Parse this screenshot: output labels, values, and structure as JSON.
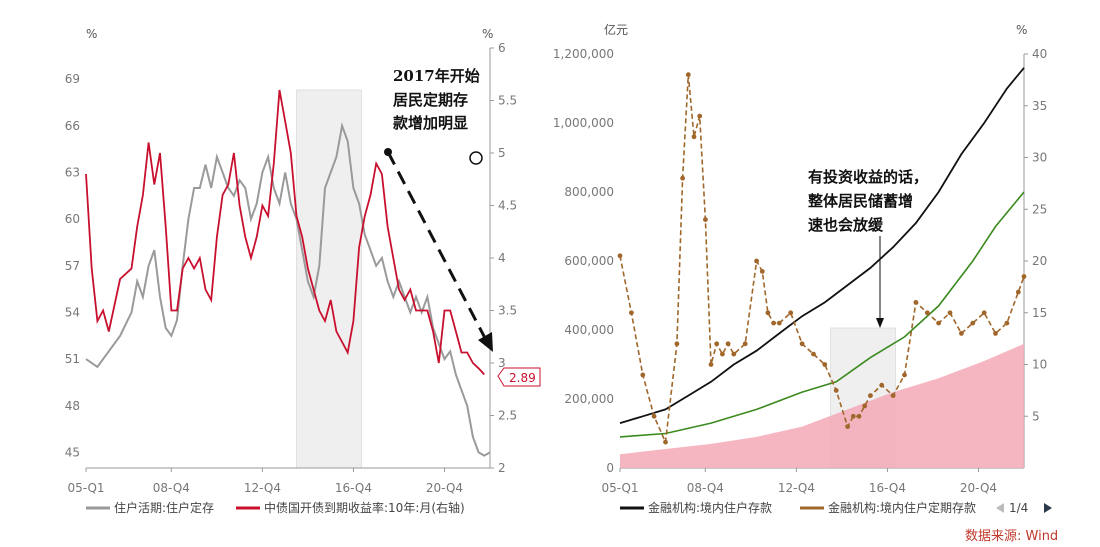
{
  "colors": {
    "gray": "#9a9a9a",
    "red": "#c8102e",
    "black": "#111111",
    "brown": "#a0662a",
    "green": "#3b8a1e",
    "pink": "#f4a9b6",
    "shade": "#e6e6e6"
  },
  "source_text": "数据来源: Wind",
  "pagination": {
    "text": "1/4",
    "prev_icon": "triangle-left-icon",
    "next_icon": "triangle-right-icon"
  },
  "chart_data": [
    {
      "type": "line",
      "x_tick_labels": [
        "05-Q1",
        "08-Q4",
        "12-Q4",
        "16-Q4",
        "20-Q4"
      ],
      "x_range": [
        "2005",
        "2022.75"
      ],
      "left_unit": "%",
      "right_unit": "%",
      "left_ticks": [
        "45",
        "48",
        "51",
        "54",
        "57",
        "60",
        "63",
        "66",
        "69"
      ],
      "left_ylim": [
        44,
        71
      ],
      "right_ticks": [
        "2",
        "2.5",
        "3",
        "3.5",
        "4",
        "4.5",
        "5",
        "5.5",
        "6"
      ],
      "right_ylim": [
        2,
        6
      ],
      "shaded_region": [
        2014.25,
        2017.1
      ],
      "series": [
        {
          "name": "住户活期:住户定存",
          "axis": "left",
          "x": [
            2005.0,
            2005.5,
            2006.0,
            2006.5,
            2007.0,
            2007.25,
            2007.5,
            2007.75,
            2008.0,
            2008.25,
            2008.5,
            2008.75,
            2009.0,
            2009.25,
            2009.5,
            2009.75,
            2010.0,
            2010.25,
            2010.5,
            2010.75,
            2011.0,
            2011.25,
            2011.5,
            2011.75,
            2012.0,
            2012.25,
            2012.5,
            2012.75,
            2013.0,
            2013.25,
            2013.5,
            2013.75,
            2014.0,
            2014.25,
            2014.5,
            2014.75,
            2015.0,
            2015.25,
            2015.5,
            2015.75,
            2016.0,
            2016.25,
            2016.5,
            2016.75,
            2017.0,
            2017.25,
            2017.5,
            2017.75,
            2018.0,
            2018.25,
            2018.5,
            2018.75,
            2019.0,
            2019.25,
            2019.5,
            2019.75,
            2020.0,
            2020.25,
            2020.5,
            2020.75,
            2021.0,
            2021.25,
            2021.5,
            2021.75,
            2022.0,
            2022.25,
            2022.5,
            2022.75
          ],
          "values": [
            51,
            50.5,
            51.5,
            52.5,
            54,
            56,
            55,
            57,
            58,
            55,
            53,
            52.5,
            53.5,
            57,
            60,
            62,
            62,
            63.5,
            62,
            64,
            63,
            62,
            61.5,
            62.5,
            62,
            60,
            61,
            63,
            64,
            62,
            61,
            63,
            61,
            60,
            58,
            56,
            55,
            57,
            62,
            63,
            64,
            66,
            65,
            62,
            61,
            59,
            58,
            57,
            57.5,
            56,
            55,
            56,
            55,
            54,
            55,
            54,
            55,
            53,
            52,
            51,
            51.5,
            50,
            49,
            48,
            46,
            45,
            44.8,
            45
          ]
        },
        {
          "name": "中债国开债到期收益率:10年:月(右轴)",
          "axis": "right",
          "x": [
            2005.0,
            2005.25,
            2005.5,
            2005.75,
            2006.0,
            2006.5,
            2007.0,
            2007.25,
            2007.5,
            2007.75,
            2008.0,
            2008.25,
            2008.5,
            2008.75,
            2009.0,
            2009.25,
            2009.5,
            2009.75,
            2010.0,
            2010.25,
            2010.5,
            2010.75,
            2011.0,
            2011.25,
            2011.5,
            2011.75,
            2012.0,
            2012.25,
            2012.5,
            2012.75,
            2013.0,
            2013.25,
            2013.5,
            2013.75,
            2014.0,
            2014.25,
            2014.5,
            2014.75,
            2015.0,
            2015.25,
            2015.5,
            2015.75,
            2016.0,
            2016.25,
            2016.5,
            2016.75,
            2017.0,
            2017.25,
            2017.5,
            2017.75,
            2018.0,
            2018.25,
            2018.5,
            2018.75,
            2019.0,
            2019.25,
            2019.5,
            2019.75,
            2020.0,
            2020.25,
            2020.5,
            2020.75,
            2021.0,
            2021.25,
            2021.5,
            2021.75,
            2022.0,
            2022.25,
            2022.5
          ],
          "values": [
            4.8,
            3.9,
            3.4,
            3.5,
            3.3,
            3.8,
            3.9,
            4.3,
            4.6,
            5.1,
            4.7,
            5.0,
            4.3,
            3.5,
            3.5,
            3.9,
            4.0,
            3.9,
            4.0,
            3.7,
            3.6,
            4.2,
            4.6,
            4.7,
            5.0,
            4.5,
            4.2,
            4.0,
            4.2,
            4.5,
            4.4,
            4.9,
            5.6,
            5.3,
            5.0,
            4.4,
            4.2,
            3.9,
            3.7,
            3.5,
            3.4,
            3.6,
            3.3,
            3.2,
            3.1,
            3.4,
            4.1,
            4.4,
            4.6,
            4.9,
            4.8,
            4.3,
            4.0,
            3.7,
            3.6,
            3.7,
            3.5,
            3.5,
            3.5,
            3.3,
            3.0,
            3.5,
            3.5,
            3.3,
            3.1,
            3.1,
            3.0,
            2.95,
            2.89
          ]
        }
      ],
      "end_label": "2.89",
      "annotation": [
        "2017年开始",
        "居民定期存",
        "款增加明显"
      ]
    },
    {
      "type": "line",
      "x_tick_labels": [
        "05-Q1",
        "08-Q4",
        "12-Q4",
        "16-Q4",
        "20-Q4"
      ],
      "x_range": [
        "2005",
        "2022.75"
      ],
      "left_unit": "亿元",
      "right_unit": "%",
      "left_ticks": [
        "0",
        "200,000",
        "400,000",
        "600,000",
        "800,000",
        "1,000,000",
        "1,200,000"
      ],
      "left_ylim": [
        0,
        1200000
      ],
      "right_ticks": [
        "5",
        "10",
        "15",
        "20",
        "25",
        "30",
        "35",
        "40"
      ],
      "right_ylim": [
        0,
        40
      ],
      "shaded_region": [
        2014.25,
        2017.1
      ],
      "series": [
        {
          "name": "金融机构:境内住户存款",
          "axis": "left",
          "x": [
            2005.0,
            2006.0,
            2007.0,
            2008.0,
            2009.0,
            2010.0,
            2011.0,
            2012.0,
            2013.0,
            2014.0,
            2015.0,
            2016.0,
            2017.0,
            2018.0,
            2019.0,
            2020.0,
            2021.0,
            2022.0,
            2022.75
          ],
          "values": [
            130000,
            150000,
            170000,
            210000,
            250000,
            300000,
            340000,
            390000,
            440000,
            480000,
            530000,
            580000,
            640000,
            710000,
            800000,
            910000,
            1000000,
            1100000,
            1160000
          ]
        },
        {
          "name": "金融机构:境内住户定期存款",
          "axis": "right",
          "x": [
            2005.0,
            2005.5,
            2006.0,
            2006.5,
            2007.0,
            2007.5,
            2007.75,
            2008.0,
            2008.25,
            2008.5,
            2008.75,
            2009.0,
            2009.25,
            2009.5,
            2009.75,
            2010.0,
            2010.5,
            2011.0,
            2011.25,
            2011.5,
            2011.75,
            2012.0,
            2012.5,
            2013.0,
            2013.5,
            2014.0,
            2014.5,
            2015.0,
            2015.25,
            2015.5,
            2015.75,
            2016.0,
            2016.5,
            2017.0,
            2017.5,
            2018.0,
            2018.5,
            2019.0,
            2019.5,
            2020.0,
            2020.5,
            2021.0,
            2021.5,
            2022.0,
            2022.5,
            2022.75
          ],
          "values": [
            20.5,
            15,
            9,
            5,
            2.5,
            12,
            28,
            38,
            32,
            34,
            24,
            10,
            12,
            11,
            12,
            11,
            12,
            20,
            19,
            15,
            14,
            14,
            15,
            12,
            11,
            10,
            7.5,
            4,
            5,
            5,
            6,
            7,
            8,
            7,
            9,
            16,
            15,
            14,
            15,
            13,
            14,
            15,
            13,
            14,
            17,
            18.5
          ]
        },
        {
          "name": "green line",
          "axis": "left",
          "x": [
            2005.0,
            2007.0,
            2009.0,
            2011.0,
            2013.0,
            2014.5,
            2016.0,
            2017.5,
            2019.0,
            2020.5,
            2021.5,
            2022.75
          ],
          "values": [
            90000,
            100000,
            130000,
            170000,
            220000,
            250000,
            320000,
            380000,
            470000,
            600000,
            700000,
            800000
          ]
        },
        {
          "name": "pink area",
          "axis": "left",
          "x": [
            2005.0,
            2007.0,
            2009.0,
            2011.0,
            2013.0,
            2015.0,
            2017.0,
            2019.0,
            2021.0,
            2022.75
          ],
          "values": [
            40000,
            55000,
            70000,
            90000,
            120000,
            170000,
            220000,
            260000,
            310000,
            360000
          ]
        }
      ],
      "annotation": [
        "有投资收益的话，",
        "整体居民储蓄增",
        "速也会放缓"
      ]
    }
  ]
}
